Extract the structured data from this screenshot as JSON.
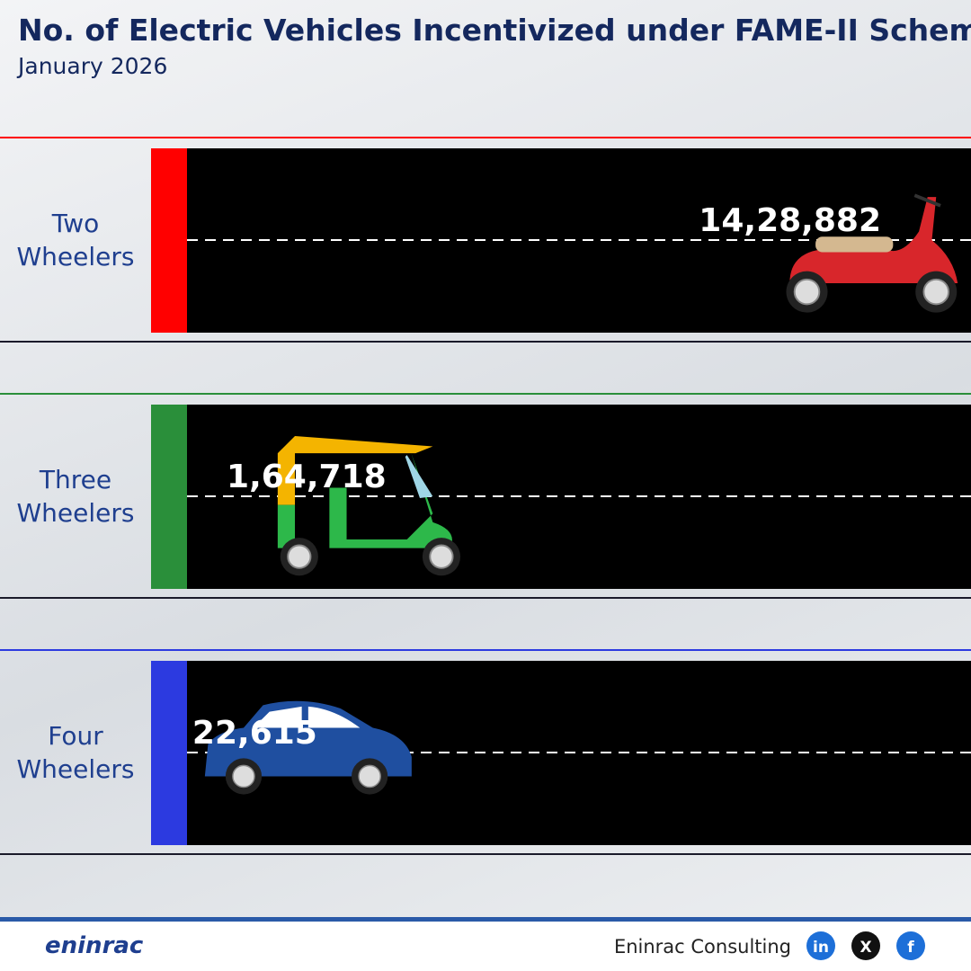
{
  "chart_data": {
    "type": "lanes",
    "title": "No. of Electric Vehicles Incentivized under FAME-II Scheme",
    "subtitle": "January 2026",
    "categories": [
      "Two Wheelers",
      "Three Wheelers",
      "Four Wheelers"
    ],
    "values": [
      1428882,
      164718,
      22615
    ],
    "value_labels": [
      "14,28,882",
      "1,64,718",
      "22,615"
    ],
    "colors": [
      "#ff0000",
      "#2a8f3a",
      "#2c3ae0"
    ]
  },
  "footer": {
    "logo": "eninrac",
    "brand": "Eninrac Consulting",
    "social": [
      "in",
      "X",
      "f"
    ]
  }
}
